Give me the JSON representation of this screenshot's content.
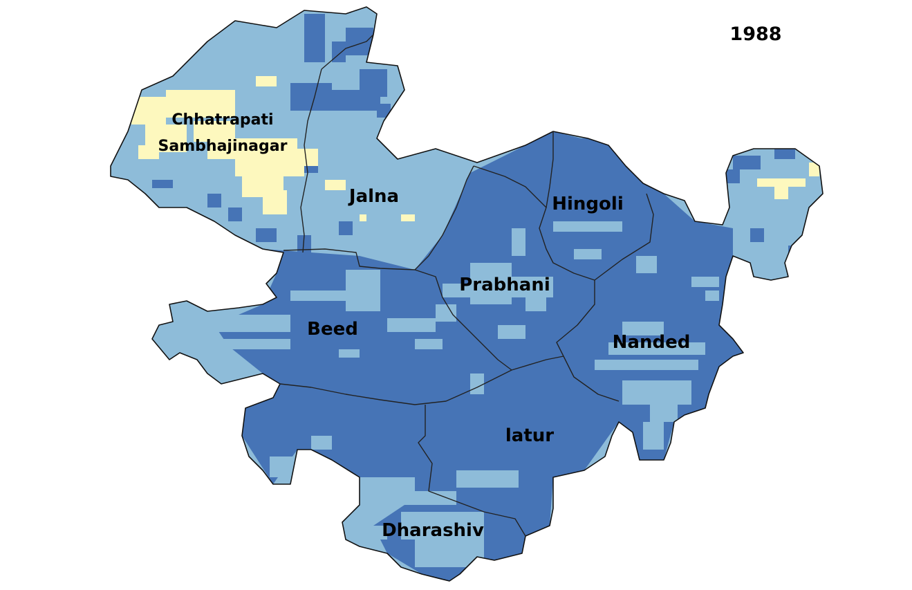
{
  "year": "1988",
  "colors": {
    "low": "#fdf8be",
    "medium": "#8ebcd9",
    "high": "#4674b6",
    "background": "#ffffff",
    "border": "#222222"
  },
  "districts": [
    {
      "id": "chhatrapati-sambhajinagar",
      "label_line1": "Chhatrapati",
      "label_line2": "Sambhajinagar"
    },
    {
      "id": "jalna",
      "label": "Jalna"
    },
    {
      "id": "hingoli",
      "label": "Hingoli"
    },
    {
      "id": "prabhani",
      "label": "Prabhani"
    },
    {
      "id": "beed",
      "label": "Beed"
    },
    {
      "id": "nanded",
      "label": "Nanded"
    },
    {
      "id": "latur",
      "label": "latur"
    },
    {
      "id": "dharashiv",
      "label": "Dharashiv"
    }
  ]
}
